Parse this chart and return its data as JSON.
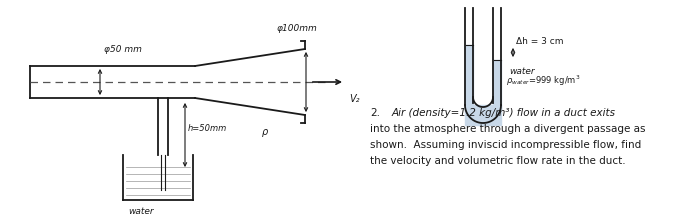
{
  "bg_color": "#ffffff",
  "line_color": "#1a1a1a",
  "dash_color": "#555555",
  "water_fill": "#c8d8e8",
  "phi50_label": "φ50 mm",
  "phi100_label": "φ100mm",
  "v2_label": "V₂",
  "h_label": "h=50mm",
  "water_label": "water",
  "rho_label": "ρ",
  "delta_h_label": "Δh = 3 cm",
  "water_rho_line1": "water",
  "water_rho_line2": "ρₐₑₐₜₑ∣ 999 kg/m³",
  "prob_num": "2.",
  "prob_line1": "Air (density=1.2 kg/m³) flow in a duct exits",
  "prob_line2": "into the atmosphere through a divergent passage as",
  "prob_line3": "shown.  Assuming inviscid incompressible flow, find",
  "prob_line4": "the velocity and volumetric flow rate in the duct.",
  "fig_w": 7.0,
  "fig_h": 2.2,
  "dpi": 100
}
